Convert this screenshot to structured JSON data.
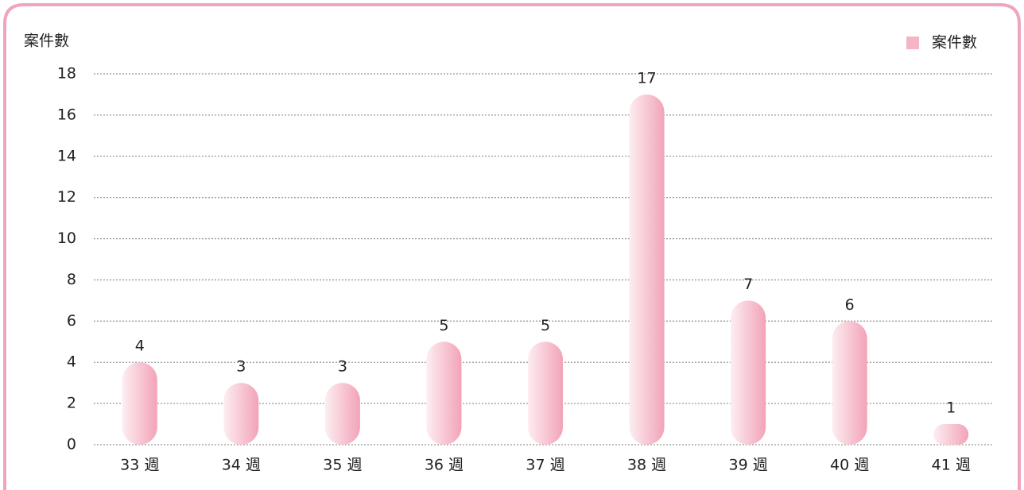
{
  "chart_data": {
    "type": "bar",
    "y_label": "案件數",
    "categories": [
      "33 週",
      "34 週",
      "35 週",
      "36 週",
      "37 週",
      "38 週",
      "39 週",
      "40 週",
      "41 週"
    ],
    "series": [
      {
        "name": "案件數",
        "color": "#f2a3b8",
        "values": [
          4,
          3,
          3,
          5,
          5,
          17,
          7,
          6,
          1
        ]
      }
    ],
    "ylim": [
      0,
      18
    ],
    "yticks": [
      0,
      2,
      4,
      6,
      8,
      10,
      12,
      14,
      16,
      18
    ],
    "grid": true,
    "legend": "top-right"
  }
}
